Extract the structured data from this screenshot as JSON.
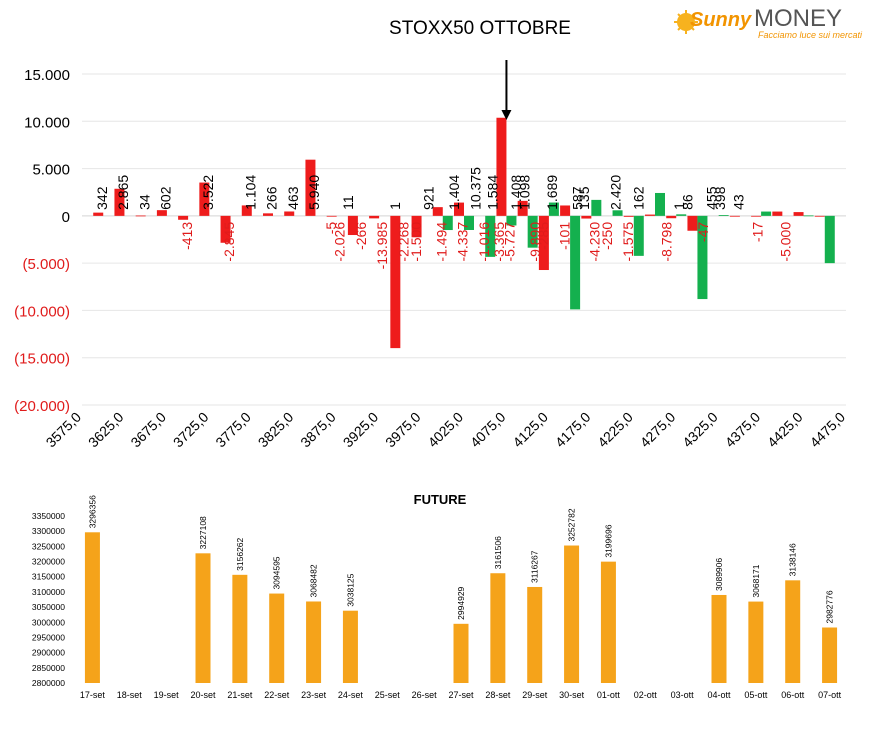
{
  "logo": {
    "word1": "Sunny",
    "word2": "MONEY",
    "tagline": "Facciamo luce sui mercati"
  },
  "chart_data": [
    {
      "type": "bar",
      "title": "STOXX50 OTTOBRE",
      "xlabel": "",
      "ylabel": "",
      "ylim": [
        -20000,
        15000
      ],
      "grid": true,
      "y_ticks": [
        "(20.000)",
        "(15.000)",
        "(10.000)",
        "(5.000)",
        "0",
        "5.000",
        "10.000",
        "15.000"
      ],
      "x_ticks": [
        "3575,0",
        "3625,0",
        "3675,0",
        "3725,0",
        "3775,0",
        "3825,0",
        "3875,0",
        "3925,0",
        "3975,0",
        "4025,0",
        "4075,0",
        "4125,0",
        "4175,0",
        "4225,0",
        "4275,0",
        "4325,0",
        "4375,0",
        "4425,0",
        "4475,0"
      ],
      "marker_strike": 4075,
      "colors": {
        "red": "#ee1c1c",
        "green": "#14b04e"
      },
      "series": [
        {
          "color": "red",
          "x": [
            3600,
            3625,
            3650,
            3675,
            3700,
            3725,
            3750,
            3775,
            3800,
            3825,
            3850,
            3875,
            3900,
            3925,
            3950,
            3975,
            4000,
            4025,
            4050,
            4075,
            4100,
            4125,
            4150,
            4175,
            4200,
            4225,
            4250,
            4275,
            4300,
            4325,
            4350,
            4375,
            4400,
            4425,
            4450
          ],
          "values": [
            342,
            2865,
            34,
            602,
            -413,
            3522,
            -2845,
            1104,
            266,
            463,
            5940,
            -5,
            -2026,
            -266,
            -13985,
            -2268,
            921,
            1404,
            null,
            10375,
            1584,
            -5727,
            1098,
            -285,
            null,
            -101,
            135,
            -250,
            -1575,
            null,
            1,
            -47,
            455,
            398,
            -17
          ]
        },
        {
          "color": "green",
          "x": [
            4000,
            4025,
            4050,
            4075,
            4100,
            4125,
            4150,
            4175,
            4200,
            4225,
            4250,
            4275,
            4300,
            4325,
            4350,
            4375,
            4400,
            4425,
            4450
          ],
          "values": [
            -1500,
            -1494,
            -4337,
            -1016,
            -3365,
            1408,
            -9890,
            1689,
            587,
            -4230,
            2420,
            162,
            -8798,
            86,
            null,
            455,
            null,
            43,
            -5000
          ]
        }
      ],
      "data_labels": [
        {
          "x": 3600,
          "t": "342"
        },
        {
          "x": 3625,
          "t": "2.865"
        },
        {
          "x": 3650,
          "t": "34"
        },
        {
          "x": 3675,
          "t": "602"
        },
        {
          "x": 3700,
          "t": "-413"
        },
        {
          "x": 3725,
          "t": "3.522"
        },
        {
          "x": 3750,
          "t": "-2.845"
        },
        {
          "x": 3775,
          "t": "1.104"
        },
        {
          "x": 3800,
          "t": "266"
        },
        {
          "x": 3825,
          "t": "463"
        },
        {
          "x": 3850,
          "t": "5.940"
        },
        {
          "x": 3870,
          "t": "-5"
        },
        {
          "x": 3880,
          "t": "-2.026"
        },
        {
          "x": 3890,
          "t": "11"
        },
        {
          "x": 3905,
          "t": "-266"
        },
        {
          "x": 3930,
          "t": "-13.985"
        },
        {
          "x": 3945,
          "t": "1"
        },
        {
          "x": 3955,
          "t": "-2.268"
        },
        {
          "x": 3970,
          "t": "-1.500"
        },
        {
          "x": 3985,
          "t": "921"
        },
        {
          "x": 4000,
          "t": "-1.494"
        },
        {
          "x": 4015,
          "t": "1.404"
        },
        {
          "x": 4025,
          "t": "-4.337"
        },
        {
          "x": 4040,
          "t": "10.375"
        },
        {
          "x": 4050,
          "t": "-1.016"
        },
        {
          "x": 4060,
          "t": "1.584"
        },
        {
          "x": 4068,
          "t": "-3.365"
        },
        {
          "x": 4080,
          "t": "-5.727"
        },
        {
          "x": 4088,
          "t": "1.408"
        },
        {
          "x": 4098,
          "t": "1.098"
        },
        {
          "x": 4110,
          "t": "-9.890"
        },
        {
          "x": 4120,
          "t": "-285"
        },
        {
          "x": 4130,
          "t": "1.689"
        },
        {
          "x": 4145,
          "t": "-101"
        },
        {
          "x": 4160,
          "t": "587"
        },
        {
          "x": 4168,
          "t": "135"
        },
        {
          "x": 4180,
          "t": "-4.230"
        },
        {
          "x": 4195,
          "t": "-250"
        },
        {
          "x": 4205,
          "t": "2.420"
        },
        {
          "x": 4220,
          "t": "-1.575"
        },
        {
          "x": 4232,
          "t": "162"
        },
        {
          "x": 4265,
          "t": "-8.798"
        },
        {
          "x": 4280,
          "t": "1"
        },
        {
          "x": 4290,
          "t": "86"
        },
        {
          "x": 4308,
          "t": "-47"
        },
        {
          "x": 4318,
          "t": "455"
        },
        {
          "x": 4328,
          "t": "398"
        },
        {
          "x": 4350,
          "t": "43"
        },
        {
          "x": 4372,
          "t": "-17"
        },
        {
          "x": 4405,
          "t": "-5.000"
        }
      ]
    },
    {
      "type": "bar",
      "title": "FUTURE",
      "xlabel": "",
      "ylabel": "",
      "ylim": [
        2800000,
        3350000
      ],
      "color": "#f5a31a",
      "y_ticks": [
        "2800000",
        "2850000",
        "2900000",
        "2950000",
        "3000000",
        "3050000",
        "3100000",
        "3150000",
        "3200000",
        "3250000",
        "3300000",
        "3350000"
      ],
      "categories": [
        "17-set",
        "18-set",
        "19-set",
        "20-set",
        "21-set",
        "22-set",
        "23-set",
        "24-set",
        "25-set",
        "26-set",
        "27-set",
        "28-set",
        "29-set",
        "30-set",
        "01-ott",
        "02-ott",
        "03-ott",
        "04-ott",
        "05-ott",
        "06-ott",
        "07-ott"
      ],
      "values": [
        3296356,
        null,
        null,
        3227108,
        3156262,
        3094595,
        3068482,
        3038125,
        null,
        null,
        2994929,
        3161506,
        3116267,
        3252782,
        3199696,
        null,
        null,
        3089906,
        3068171,
        3138146,
        2982776
      ],
      "value_labels": [
        "3296356",
        "",
        "",
        "3227108",
        "3156262",
        "3094595",
        "3068482",
        "3038125",
        "",
        "",
        "2994929",
        "3161506",
        "3116267",
        "3252782",
        "3199696",
        "",
        "",
        "3089906",
        "3068171",
        "3138146",
        "2982776"
      ]
    }
  ]
}
